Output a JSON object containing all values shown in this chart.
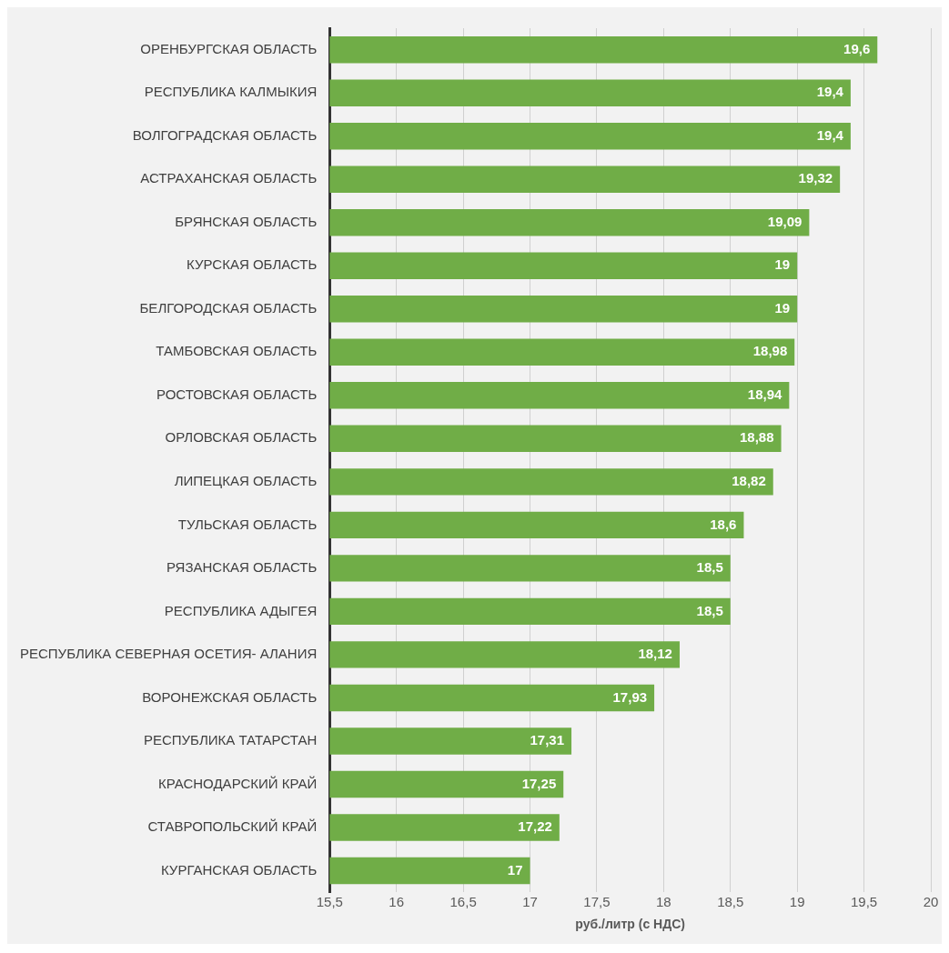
{
  "chart_data": {
    "type": "bar",
    "orientation": "horizontal",
    "xlabel": "руб./литр (с НДС)",
    "categories": [
      "ОРЕНБУРГСКАЯ ОБЛАСТЬ",
      "РЕСПУБЛИКА КАЛМЫКИЯ",
      "ВОЛГОГРАДСКАЯ ОБЛАСТЬ",
      "АСТРАХАНСКАЯ ОБЛАСТЬ",
      "БРЯНСКАЯ ОБЛАСТЬ",
      "КУРСКАЯ ОБЛАСТЬ",
      "БЕЛГОРОДСКАЯ ОБЛАСТЬ",
      "ТАМБОВСКАЯ ОБЛАСТЬ",
      "РОСТОВСКАЯ ОБЛАСТЬ",
      "ОРЛОВСКАЯ ОБЛАСТЬ",
      "ЛИПЕЦКАЯ ОБЛАСТЬ",
      "ТУЛЬСКАЯ ОБЛАСТЬ",
      "РЯЗАНСКАЯ ОБЛАСТЬ",
      "РЕСПУБЛИКА АДЫГЕЯ",
      "РЕСПУБЛИКА СЕВЕРНАЯ ОСЕТИЯ- АЛАНИЯ",
      "ВОРОНЕЖСКАЯ ОБЛАСТЬ",
      "РЕСПУБЛИКА ТАТАРСТАН",
      "КРАСНОДАРСКИЙ КРАЙ",
      "СТАВРОПОЛЬСКИЙ КРАЙ",
      "КУРГАНСКАЯ ОБЛАСТЬ"
    ],
    "values": [
      19.6,
      19.4,
      19.4,
      19.32,
      19.09,
      19,
      19,
      18.98,
      18.94,
      18.88,
      18.82,
      18.6,
      18.5,
      18.5,
      18.12,
      17.93,
      17.31,
      17.25,
      17.22,
      17
    ],
    "value_labels": [
      "19,6",
      "19,4",
      "19,4",
      "19,32",
      "19,09",
      "19",
      "19",
      "18,98",
      "18,94",
      "18,88",
      "18,82",
      "18,6",
      "18,5",
      "18,5",
      "18,12",
      "17,93",
      "17,31",
      "17,25",
      "17,22",
      "17"
    ],
    "color": "#70ad47",
    "xlim": [
      15.5,
      20
    ],
    "xticks": [
      {
        "value": 15.5,
        "label": "15,5"
      },
      16,
      {
        "value": 16.5,
        "label": "16,5"
      },
      17,
      {
        "value": 17.5,
        "label": "17,5"
      },
      18,
      {
        "value": 18.5,
        "label": "18,5"
      },
      19,
      {
        "value": 19.5,
        "label": "19,5"
      },
      20
    ],
    "grid": "x",
    "legend": false
  }
}
